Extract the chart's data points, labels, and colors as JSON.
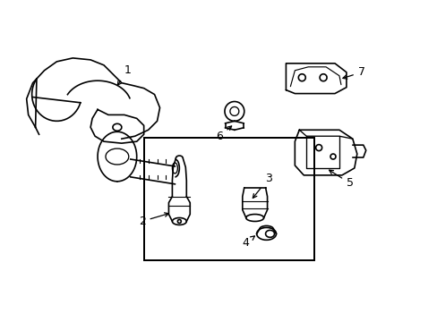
{
  "background_color": "#ffffff",
  "line_color": "#000000",
  "line_width": 1.2,
  "fig_width": 4.89,
  "fig_height": 3.6,
  "dpi": 100,
  "font_size": 9
}
